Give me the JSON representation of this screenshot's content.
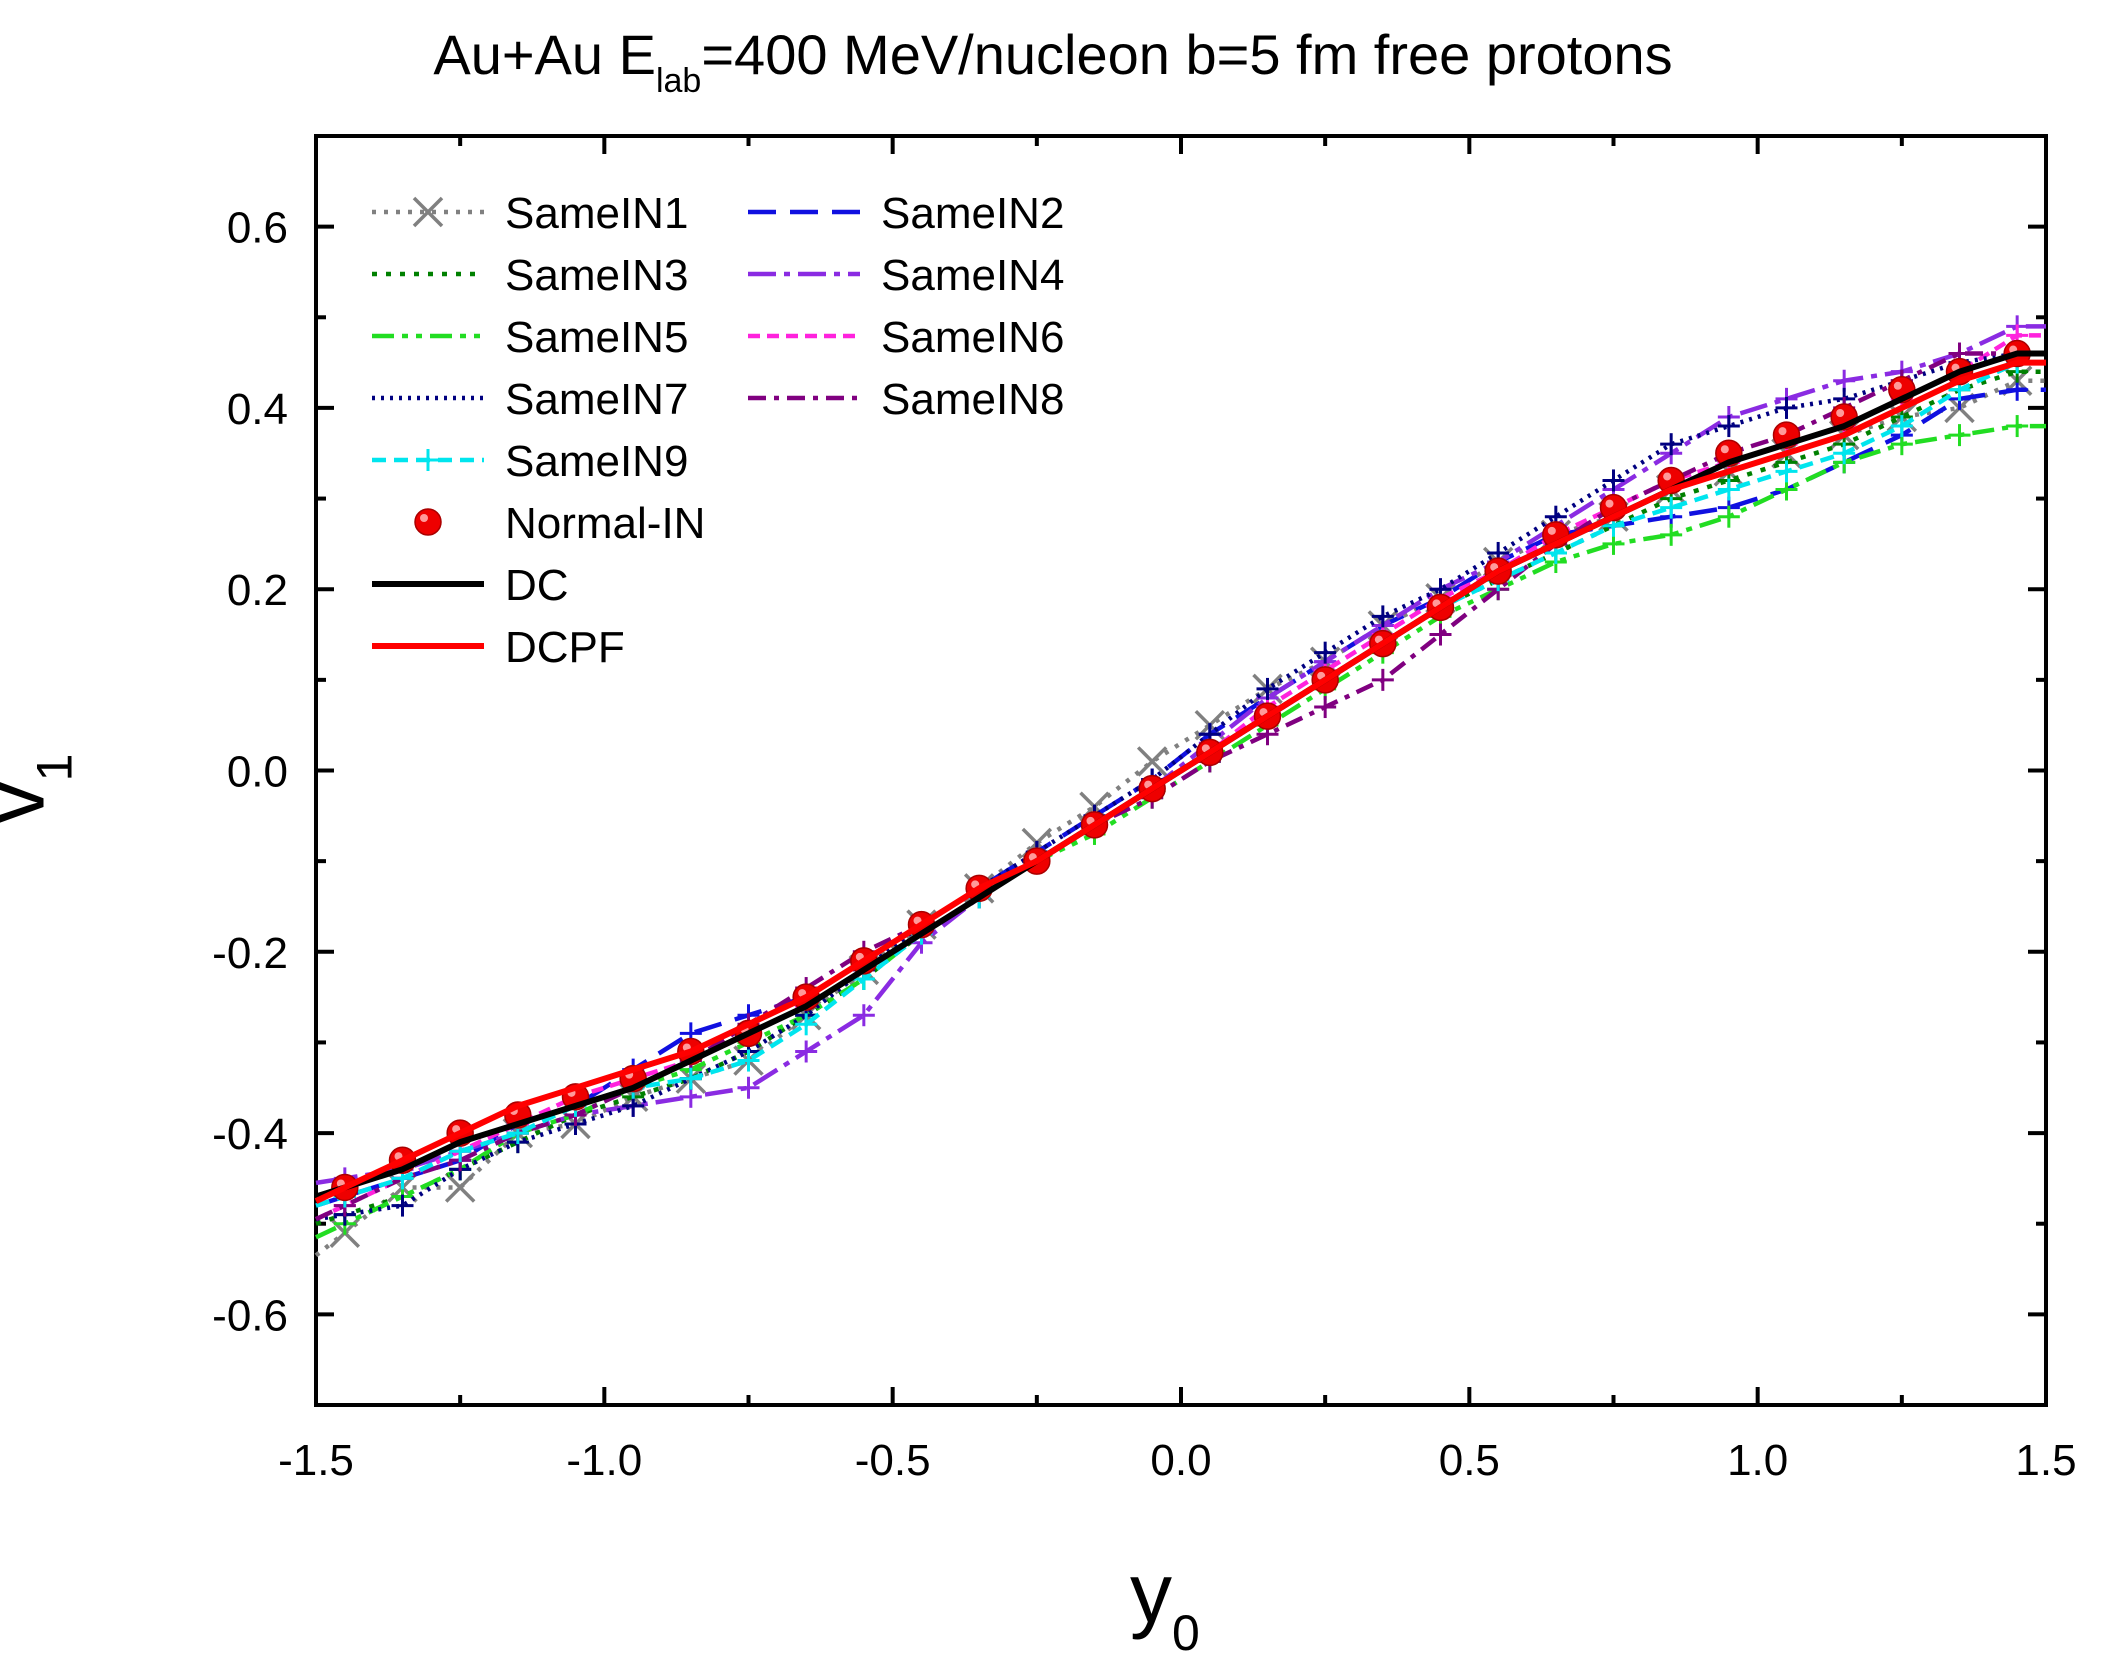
{
  "chart_data": {
    "type": "line",
    "title_main": "Au+Au  E",
    "title_sub": "lab",
    "title_rest": "=400 MeV/nucleon  b=5 fm  free protons",
    "xlabel_main": "y",
    "xlabel_sub": "0",
    "ylabel_main": "v",
    "ylabel_sub": "1",
    "xlim": [
      -1.5,
      1.5
    ],
    "ylim": [
      -0.7,
      0.7
    ],
    "xticks": [
      -1.5,
      -1.0,
      -0.5,
      0.0,
      0.5,
      1.0,
      1.5
    ],
    "xtick_labels": [
      "-1.5",
      "-1.0",
      "-0.5",
      "0.0",
      "0.5",
      "1.0",
      "1.5"
    ],
    "yticks": [
      -0.6,
      -0.4,
      -0.2,
      0.0,
      0.2,
      0.4,
      0.6
    ],
    "ytick_labels": [
      "-0.6",
      "-0.4",
      "-0.2",
      "0.0",
      "0.2",
      "0.4",
      "0.6"
    ],
    "x": [
      -1.45,
      -1.35,
      -1.25,
      -1.15,
      -1.05,
      -0.95,
      -0.85,
      -0.75,
      -0.65,
      -0.55,
      -0.45,
      -0.35,
      -0.25,
      -0.15,
      -0.05,
      0.05,
      0.15,
      0.25,
      0.35,
      0.45,
      0.55,
      0.65,
      0.75,
      0.85,
      0.95,
      1.05,
      1.15,
      1.25,
      1.35,
      1.45
    ],
    "legend_position": "top-left",
    "series": [
      {
        "name": "SameIN1",
        "color": "#808080",
        "dash": "4,8",
        "marker": "x",
        "values": [
          -0.51,
          -0.46,
          -0.46,
          -0.4,
          -0.39,
          -0.36,
          -0.34,
          -0.32,
          -0.27,
          -0.22,
          -0.17,
          -0.13,
          -0.08,
          -0.04,
          0.01,
          0.05,
          0.09,
          0.12,
          0.16,
          0.19,
          0.23,
          0.26,
          0.28,
          0.31,
          0.33,
          0.35,
          0.37,
          0.39,
          0.4,
          0.43
        ]
      },
      {
        "name": "SameIN2",
        "color": "#1010e0",
        "dash": "28,14",
        "marker": "plus",
        "values": [
          -0.47,
          -0.45,
          -0.43,
          -0.39,
          -0.37,
          -0.33,
          -0.29,
          -0.27,
          -0.25,
          -0.21,
          -0.17,
          -0.13,
          -0.09,
          -0.05,
          -0.01,
          0.04,
          0.08,
          0.12,
          0.16,
          0.19,
          0.23,
          0.26,
          0.27,
          0.28,
          0.29,
          0.31,
          0.34,
          0.37,
          0.41,
          0.42
        ]
      },
      {
        "name": "SameIN3",
        "color": "#008000",
        "dash": "5,9",
        "marker": "plus",
        "values": [
          -0.49,
          -0.47,
          -0.44,
          -0.41,
          -0.38,
          -0.36,
          -0.34,
          -0.31,
          -0.27,
          -0.23,
          -0.18,
          -0.14,
          -0.1,
          -0.06,
          -0.02,
          0.02,
          0.06,
          0.1,
          0.14,
          0.18,
          0.21,
          0.24,
          0.27,
          0.3,
          0.32,
          0.34,
          0.36,
          0.39,
          0.42,
          0.44
        ]
      },
      {
        "name": "SameIN4",
        "color": "#8a2be2",
        "dash": "28,8,6,8",
        "marker": "plus",
        "values": [
          -0.45,
          -0.44,
          -0.42,
          -0.4,
          -0.38,
          -0.37,
          -0.36,
          -0.35,
          -0.31,
          -0.27,
          -0.19,
          -0.14,
          -0.1,
          -0.06,
          -0.02,
          0.03,
          0.08,
          0.12,
          0.16,
          0.2,
          0.23,
          0.27,
          0.31,
          0.35,
          0.39,
          0.41,
          0.43,
          0.44,
          0.46,
          0.49
        ]
      },
      {
        "name": "SameIN5",
        "color": "#22dd22",
        "dash": "22,8,6,8,6,8",
        "marker": "plus",
        "values": [
          -0.5,
          -0.47,
          -0.44,
          -0.4,
          -0.38,
          -0.35,
          -0.33,
          -0.3,
          -0.27,
          -0.23,
          -0.18,
          -0.14,
          -0.1,
          -0.07,
          -0.03,
          0.01,
          0.05,
          0.09,
          0.13,
          0.17,
          0.2,
          0.23,
          0.25,
          0.26,
          0.28,
          0.31,
          0.34,
          0.36,
          0.37,
          0.38
        ]
      },
      {
        "name": "SameIN6",
        "color": "#ff22dd",
        "dash": "12,7",
        "marker": "plus",
        "values": [
          -0.48,
          -0.45,
          -0.42,
          -0.39,
          -0.36,
          -0.34,
          -0.32,
          -0.29,
          -0.26,
          -0.22,
          -0.18,
          -0.14,
          -0.1,
          -0.06,
          -0.02,
          0.02,
          0.07,
          0.11,
          0.15,
          0.19,
          0.22,
          0.26,
          0.29,
          0.32,
          0.34,
          0.36,
          0.38,
          0.41,
          0.44,
          0.48
        ]
      },
      {
        "name": "SameIN7",
        "color": "#000080",
        "dash": "3,6",
        "marker": "plus",
        "values": [
          -0.49,
          -0.48,
          -0.44,
          -0.41,
          -0.39,
          -0.37,
          -0.34,
          -0.31,
          -0.27,
          -0.22,
          -0.17,
          -0.13,
          -0.09,
          -0.05,
          -0.01,
          0.04,
          0.09,
          0.13,
          0.17,
          0.2,
          0.24,
          0.28,
          0.32,
          0.36,
          0.38,
          0.4,
          0.41,
          0.43,
          0.45,
          0.46
        ]
      },
      {
        "name": "SameIN8",
        "color": "#800080",
        "dash": "18,8,5,8",
        "marker": "plus",
        "values": [
          -0.48,
          -0.45,
          -0.43,
          -0.4,
          -0.38,
          -0.35,
          -0.32,
          -0.28,
          -0.24,
          -0.2,
          -0.17,
          -0.13,
          -0.1,
          -0.06,
          -0.03,
          0.01,
          0.04,
          0.07,
          0.1,
          0.15,
          0.2,
          0.25,
          0.29,
          0.32,
          0.35,
          0.37,
          0.4,
          0.43,
          0.46,
          0.46
        ]
      },
      {
        "name": "SameIN9",
        "color": "#00e5ee",
        "dash": "14,8",
        "marker": "plus",
        "values": [
          -0.47,
          -0.45,
          -0.42,
          -0.4,
          -0.37,
          -0.35,
          -0.34,
          -0.32,
          -0.28,
          -0.23,
          -0.18,
          -0.14,
          -0.1,
          -0.06,
          -0.02,
          0.02,
          0.06,
          0.1,
          0.14,
          0.18,
          0.21,
          0.24,
          0.27,
          0.29,
          0.31,
          0.33,
          0.35,
          0.38,
          0.42,
          0.45
        ]
      },
      {
        "name": "Normal-IN",
        "color": "#ee0000",
        "dash": "",
        "marker": "circle",
        "values": [
          -0.46,
          -0.43,
          -0.4,
          -0.38,
          -0.36,
          -0.34,
          -0.31,
          -0.29,
          -0.25,
          -0.21,
          -0.17,
          -0.13,
          -0.1,
          -0.06,
          -0.02,
          0.02,
          0.06,
          0.1,
          0.14,
          0.18,
          0.22,
          0.26,
          0.29,
          0.32,
          0.35,
          0.37,
          0.39,
          0.42,
          0.44,
          0.46
        ]
      },
      {
        "name": "DC",
        "color": "#000000",
        "dash": "",
        "marker": "none",
        "values": [
          -0.46,
          -0.44,
          -0.41,
          -0.39,
          -0.37,
          -0.35,
          -0.32,
          -0.29,
          -0.26,
          -0.22,
          -0.18,
          -0.14,
          -0.1,
          -0.06,
          -0.02,
          0.02,
          0.06,
          0.1,
          0.14,
          0.18,
          0.22,
          0.25,
          0.28,
          0.31,
          0.34,
          0.36,
          0.38,
          0.41,
          0.44,
          0.46
        ]
      },
      {
        "name": "DCPF",
        "color": "#ff0000",
        "dash": "",
        "marker": "none",
        "values": [
          -0.46,
          -0.43,
          -0.4,
          -0.37,
          -0.35,
          -0.33,
          -0.31,
          -0.28,
          -0.25,
          -0.21,
          -0.17,
          -0.13,
          -0.1,
          -0.06,
          -0.02,
          0.02,
          0.06,
          0.1,
          0.14,
          0.18,
          0.22,
          0.25,
          0.28,
          0.31,
          0.33,
          0.35,
          0.37,
          0.4,
          0.43,
          0.45
        ]
      }
    ]
  }
}
